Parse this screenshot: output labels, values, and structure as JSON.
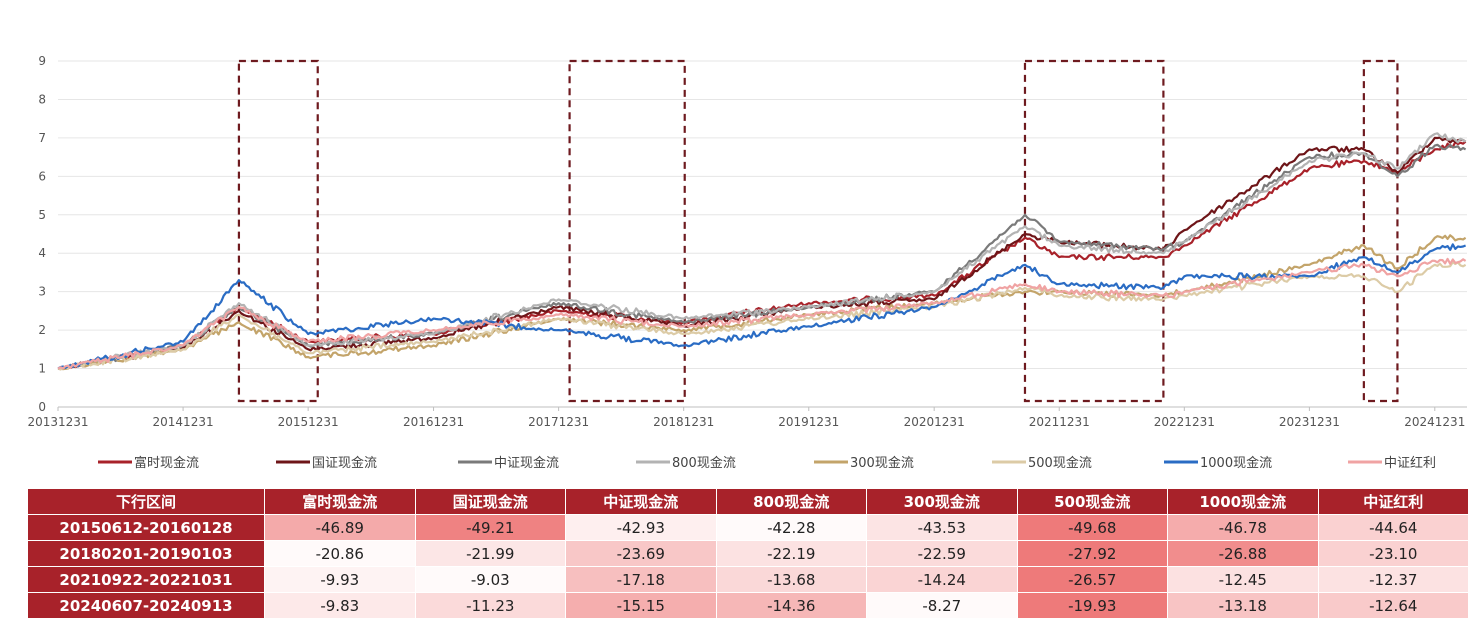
{
  "chart_data": {
    "type": "line",
    "y_ticks": [
      "0",
      "1",
      "2",
      "3",
      "4",
      "5",
      "6",
      "7",
      "8",
      "9"
    ],
    "ylim": [
      0,
      9
    ],
    "x_ticks": [
      "20131231",
      "20141231",
      "20151231",
      "20161231",
      "20171231",
      "20181231",
      "20191231",
      "20201231",
      "20211231",
      "20221231",
      "20231231",
      "20241231"
    ],
    "grid": "horizontal",
    "legend_position": "bottom",
    "highlight_periods": [
      [
        "20150612",
        "20160128"
      ],
      [
        "20180201",
        "20190103"
      ],
      [
        "20210922",
        "20221031"
      ],
      [
        "20240607",
        "20240913"
      ]
    ],
    "series": [
      {
        "name": "富时现金流",
        "color": "#a8222a",
        "points": [
          [
            "20131231",
            1.0
          ],
          [
            "20141231",
            1.6
          ],
          [
            "20150612",
            2.6
          ],
          [
            "20151231",
            1.7
          ],
          [
            "20161231",
            1.9
          ],
          [
            "20171231",
            2.5
          ],
          [
            "20181231",
            2.2
          ],
          [
            "20191231",
            2.7
          ],
          [
            "20201231",
            2.9
          ],
          [
            "20210922",
            4.4
          ],
          [
            "20211231",
            3.9
          ],
          [
            "20221031",
            3.9
          ],
          [
            "20221231",
            4.2
          ],
          [
            "20231231",
            6.2
          ],
          [
            "20240607",
            6.4
          ],
          [
            "20240913",
            6.1
          ],
          [
            "20241231",
            6.7
          ],
          [
            "20250331",
            6.9
          ]
        ]
      },
      {
        "name": "国证现金流",
        "color": "#6e1518",
        "points": [
          [
            "20131231",
            1.0
          ],
          [
            "20141231",
            1.55
          ],
          [
            "20150612",
            2.5
          ],
          [
            "20151231",
            1.5
          ],
          [
            "20161231",
            1.8
          ],
          [
            "20171231",
            2.6
          ],
          [
            "20181231",
            2.1
          ],
          [
            "20191231",
            2.6
          ],
          [
            "20201231",
            2.8
          ],
          [
            "20210922",
            4.5
          ],
          [
            "20211231",
            4.3
          ],
          [
            "20221031",
            4.1
          ],
          [
            "20221231",
            4.6
          ],
          [
            "20231231",
            6.7
          ],
          [
            "20240607",
            6.7
          ],
          [
            "20240913",
            6.1
          ],
          [
            "20241231",
            7.0
          ],
          [
            "20250331",
            6.9
          ]
        ]
      },
      {
        "name": "中证现金流",
        "color": "#7a7a7a",
        "points": [
          [
            "20131231",
            1.0
          ],
          [
            "20141231",
            1.6
          ],
          [
            "20150612",
            2.6
          ],
          [
            "20151231",
            1.6
          ],
          [
            "20161231",
            1.9
          ],
          [
            "20171231",
            2.7
          ],
          [
            "20181231",
            2.2
          ],
          [
            "20191231",
            2.6
          ],
          [
            "20201231",
            3.0
          ],
          [
            "20210922",
            5.0
          ],
          [
            "20211231",
            4.3
          ],
          [
            "20221031",
            4.1
          ],
          [
            "20221231",
            4.3
          ],
          [
            "20231231",
            6.5
          ],
          [
            "20240607",
            6.6
          ],
          [
            "20240913",
            6.0
          ],
          [
            "20241231",
            6.8
          ],
          [
            "20250331",
            6.7
          ]
        ]
      },
      {
        "name": "800现金流",
        "color": "#b3b3b3",
        "points": [
          [
            "20131231",
            1.0
          ],
          [
            "20141231",
            1.6
          ],
          [
            "20150612",
            2.7
          ],
          [
            "20151231",
            1.6
          ],
          [
            "20161231",
            1.9
          ],
          [
            "20171231",
            2.8
          ],
          [
            "20181231",
            2.3
          ],
          [
            "20191231",
            2.6
          ],
          [
            "20201231",
            3.0
          ],
          [
            "20210922",
            4.7
          ],
          [
            "20211231",
            4.2
          ],
          [
            "20221031",
            4.0
          ],
          [
            "20221231",
            4.3
          ],
          [
            "20231231",
            6.4
          ],
          [
            "20240607",
            6.6
          ],
          [
            "20240913",
            6.2
          ],
          [
            "20241231",
            7.1
          ],
          [
            "20250331",
            6.9
          ]
        ]
      },
      {
        "name": "300现金流",
        "color": "#c3a46a",
        "points": [
          [
            "20131231",
            1.0
          ],
          [
            "20141231",
            1.5
          ],
          [
            "20150612",
            2.2
          ],
          [
            "20151231",
            1.3
          ],
          [
            "20161231",
            1.6
          ],
          [
            "20171231",
            2.3
          ],
          [
            "20181231",
            2.0
          ],
          [
            "20191231",
            2.4
          ],
          [
            "20201231",
            2.7
          ],
          [
            "20210922",
            3.0
          ],
          [
            "20211231",
            3.0
          ],
          [
            "20221031",
            2.9
          ],
          [
            "20221231",
            3.0
          ],
          [
            "20231231",
            3.7
          ],
          [
            "20240607",
            4.2
          ],
          [
            "20240913",
            3.6
          ],
          [
            "20241231",
            4.4
          ],
          [
            "20250331",
            4.4
          ]
        ]
      },
      {
        "name": "500现金流",
        "color": "#dccba6",
        "points": [
          [
            "20131231",
            1.0
          ],
          [
            "20141231",
            1.5
          ],
          [
            "20150612",
            2.4
          ],
          [
            "20151231",
            1.4
          ],
          [
            "20161231",
            1.7
          ],
          [
            "20171231",
            2.3
          ],
          [
            "20181231",
            1.9
          ],
          [
            "20191231",
            2.3
          ],
          [
            "20201231",
            2.6
          ],
          [
            "20210922",
            3.1
          ],
          [
            "20211231",
            2.9
          ],
          [
            "20221031",
            2.8
          ],
          [
            "20221231",
            2.9
          ],
          [
            "20231231",
            3.4
          ],
          [
            "20240607",
            3.4
          ],
          [
            "20240913",
            3.0
          ],
          [
            "20241231",
            3.7
          ],
          [
            "20250331",
            3.7
          ]
        ]
      },
      {
        "name": "1000现金流",
        "color": "#2a6cc4",
        "points": [
          [
            "20131231",
            1.0
          ],
          [
            "20141231",
            1.7
          ],
          [
            "20150612",
            3.3
          ],
          [
            "20151231",
            1.9
          ],
          [
            "20161231",
            2.3
          ],
          [
            "20171231",
            2.0
          ],
          [
            "20181231",
            1.6
          ],
          [
            "20191231",
            2.1
          ],
          [
            "20201231",
            2.6
          ],
          [
            "20210922",
            3.7
          ],
          [
            "20211231",
            3.2
          ],
          [
            "20221031",
            3.1
          ],
          [
            "20221231",
            3.4
          ],
          [
            "20231231",
            3.4
          ],
          [
            "20240607",
            3.9
          ],
          [
            "20240913",
            3.5
          ],
          [
            "20241231",
            4.1
          ],
          [
            "20250331",
            4.2
          ]
        ]
      },
      {
        "name": "中证红利",
        "color": "#f0a3a3",
        "points": [
          [
            "20131231",
            1.0
          ],
          [
            "20141231",
            1.6
          ],
          [
            "20150612",
            2.6
          ],
          [
            "20151231",
            1.7
          ],
          [
            "20161231",
            2.0
          ],
          [
            "20171231",
            2.4
          ],
          [
            "20181231",
            2.1
          ],
          [
            "20191231",
            2.4
          ],
          [
            "20201231",
            2.7
          ],
          [
            "20210922",
            3.2
          ],
          [
            "20211231",
            3.0
          ],
          [
            "20221031",
            2.9
          ],
          [
            "20221231",
            3.0
          ],
          [
            "20231231",
            3.5
          ],
          [
            "20240607",
            3.7
          ],
          [
            "20240913",
            3.4
          ],
          [
            "20241231",
            3.8
          ],
          [
            "20250331",
            3.8
          ]
        ]
      }
    ]
  },
  "table": {
    "headers": [
      "下行区间",
      "富时现金流",
      "国证现金流",
      "中证现金流",
      "800现金流",
      "300现金流",
      "500现金流",
      "1000现金流",
      "中证红利"
    ],
    "rows": [
      {
        "period": "20150612-20160128",
        "cells": [
          "-46.89",
          "-49.21",
          "-42.93",
          "-42.28",
          "-43.53",
          "-49.68",
          "-46.78",
          "-44.64"
        ]
      },
      {
        "period": "20180201-20190103",
        "cells": [
          "-20.86",
          "-21.99",
          "-23.69",
          "-22.19",
          "-22.59",
          "-27.92",
          "-26.88",
          "-23.10"
        ]
      },
      {
        "period": "20210922-20221031",
        "cells": [
          "-9.93",
          "-9.03",
          "-17.18",
          "-13.68",
          "-14.24",
          "-26.57",
          "-12.45",
          "-12.37"
        ]
      },
      {
        "period": "20240607-20240913",
        "cells": [
          "-9.83",
          "-11.23",
          "-15.15",
          "-14.36",
          "-8.27",
          "-19.93",
          "-13.18",
          "-12.64"
        ]
      }
    ]
  }
}
